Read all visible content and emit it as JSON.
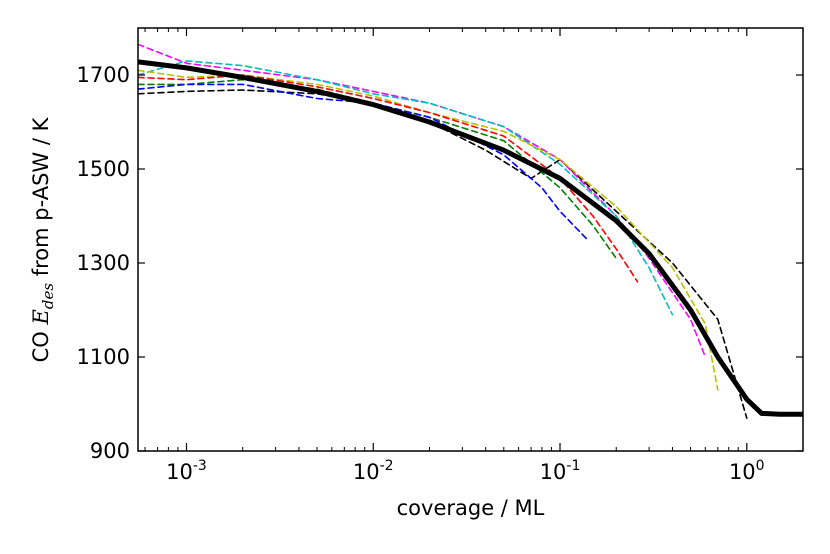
{
  "chart_data": {
    "type": "line",
    "xlabel": "coverage / ML",
    "ylabel_parts": {
      "prefix": "CO ",
      "symbol": "E",
      "subscript": "des",
      "suffix": " from p-ASW / K"
    },
    "xscale": "log",
    "xlim": [
      0.00055,
      2.0
    ],
    "ylim": [
      900,
      1800
    ],
    "x_ticks": [
      {
        "value": 0.001,
        "base": "10",
        "exp": "-3"
      },
      {
        "value": 0.01,
        "base": "10",
        "exp": "-2"
      },
      {
        "value": 0.1,
        "base": "10",
        "exp": "-1"
      },
      {
        "value": 1.0,
        "base": "10",
        "exp": "0"
      }
    ],
    "y_ticks": [
      900,
      1100,
      1300,
      1500,
      1700
    ],
    "grid": false,
    "legend": "none",
    "series": [
      {
        "style": "solid",
        "color": "#000000",
        "width": 5,
        "x": [
          0.00055,
          0.001,
          0.002,
          0.005,
          0.01,
          0.02,
          0.05,
          0.1,
          0.2,
          0.3,
          0.5,
          0.7,
          1.0,
          1.2,
          1.5,
          2.0
        ],
        "y": [
          1728,
          1715,
          1695,
          1665,
          1637,
          1600,
          1540,
          1480,
          1390,
          1320,
          1200,
          1100,
          1010,
          980,
          978,
          978
        ]
      },
      {
        "style": "dashed",
        "color": "#000000",
        "x": [
          0.00055,
          0.001,
          0.002,
          0.005,
          0.01,
          0.02,
          0.04,
          0.07,
          0.1,
          0.2,
          0.4,
          0.7,
          1.0
        ],
        "y": [
          1660,
          1665,
          1668,
          1660,
          1640,
          1600,
          1540,
          1480,
          1520,
          1410,
          1300,
          1180,
          970
        ]
      },
      {
        "style": "dashed",
        "color": "#ff00ff",
        "x": [
          0.00055,
          0.001,
          0.002,
          0.005,
          0.01,
          0.02,
          0.05,
          0.1,
          0.2,
          0.3,
          0.5,
          0.6
        ],
        "y": [
          1765,
          1725,
          1710,
          1690,
          1665,
          1640,
          1590,
          1520,
          1400,
          1310,
          1180,
          1100
        ]
      },
      {
        "style": "dashed",
        "color": "#00bfbf",
        "x": [
          0.00055,
          0.001,
          0.002,
          0.005,
          0.01,
          0.02,
          0.05,
          0.1,
          0.2,
          0.3,
          0.4
        ],
        "y": [
          1700,
          1730,
          1720,
          1690,
          1660,
          1640,
          1590,
          1510,
          1400,
          1290,
          1190
        ]
      },
      {
        "style": "dashed",
        "color": "#bfbf00",
        "x": [
          0.00055,
          0.001,
          0.002,
          0.005,
          0.01,
          0.02,
          0.05,
          0.1,
          0.2,
          0.4,
          0.6,
          0.7
        ],
        "y": [
          1710,
          1695,
          1700,
          1680,
          1655,
          1620,
          1580,
          1520,
          1420,
          1290,
          1170,
          1030
        ]
      },
      {
        "style": "dashed",
        "color": "#ff0000",
        "x": [
          0.00055,
          0.001,
          0.002,
          0.005,
          0.01,
          0.02,
          0.05,
          0.1,
          0.15,
          0.2,
          0.26
        ],
        "y": [
          1695,
          1690,
          1700,
          1675,
          1650,
          1620,
          1570,
          1480,
          1400,
          1330,
          1260
        ]
      },
      {
        "style": "dashed",
        "color": "#008000",
        "x": [
          0.00055,
          0.001,
          0.002,
          0.005,
          0.01,
          0.02,
          0.05,
          0.1,
          0.15,
          0.2
        ],
        "y": [
          1680,
          1680,
          1690,
          1670,
          1640,
          1610,
          1560,
          1460,
          1380,
          1310
        ]
      },
      {
        "style": "dashed",
        "color": "#0000ff",
        "x": [
          0.00055,
          0.001,
          0.002,
          0.005,
          0.01,
          0.02,
          0.05,
          0.08,
          0.1,
          0.14
        ],
        "y": [
          1670,
          1680,
          1680,
          1650,
          1640,
          1610,
          1530,
          1460,
          1410,
          1350
        ]
      }
    ]
  }
}
